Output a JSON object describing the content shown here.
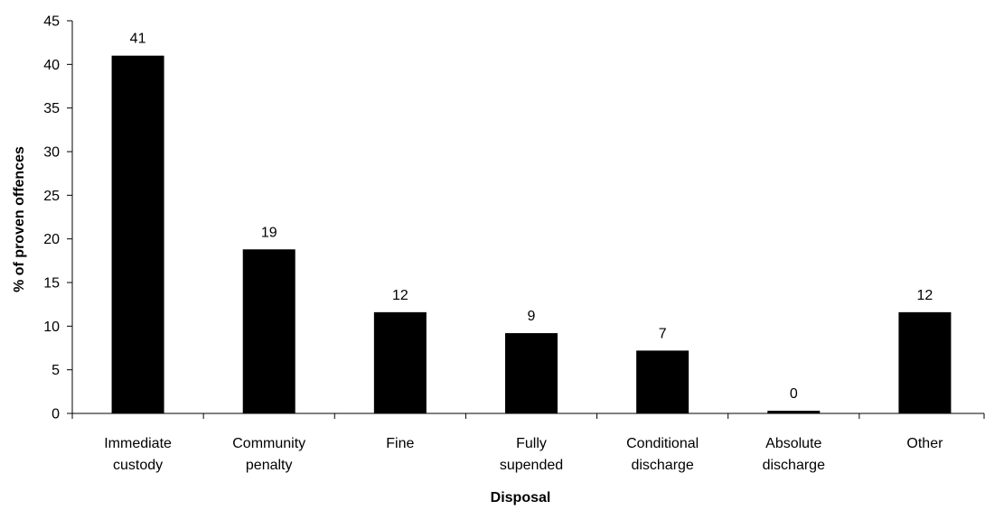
{
  "chart_data": {
    "type": "bar",
    "categories": [
      [
        "Immediate",
        "custody"
      ],
      [
        "Community",
        "penalty"
      ],
      [
        "Fine"
      ],
      [
        "Fully",
        "supended"
      ],
      [
        "Conditional",
        "discharge"
      ],
      [
        "Absolute",
        "discharge"
      ],
      [
        "Other"
      ]
    ],
    "values": [
      41,
      18.8,
      11.6,
      9.2,
      7.2,
      0.3,
      11.6
    ],
    "data_labels": [
      "41",
      "19",
      "12",
      "9",
      "7",
      "0",
      "12"
    ],
    "title": "",
    "xlabel": "Disposal",
    "ylabel": "% of proven offences",
    "ylim": [
      0,
      45
    ],
    "yticks": [
      0,
      5,
      10,
      15,
      20,
      25,
      30,
      35,
      40,
      45
    ],
    "grid": false,
    "legend": "none",
    "bar_color": "#000000"
  }
}
